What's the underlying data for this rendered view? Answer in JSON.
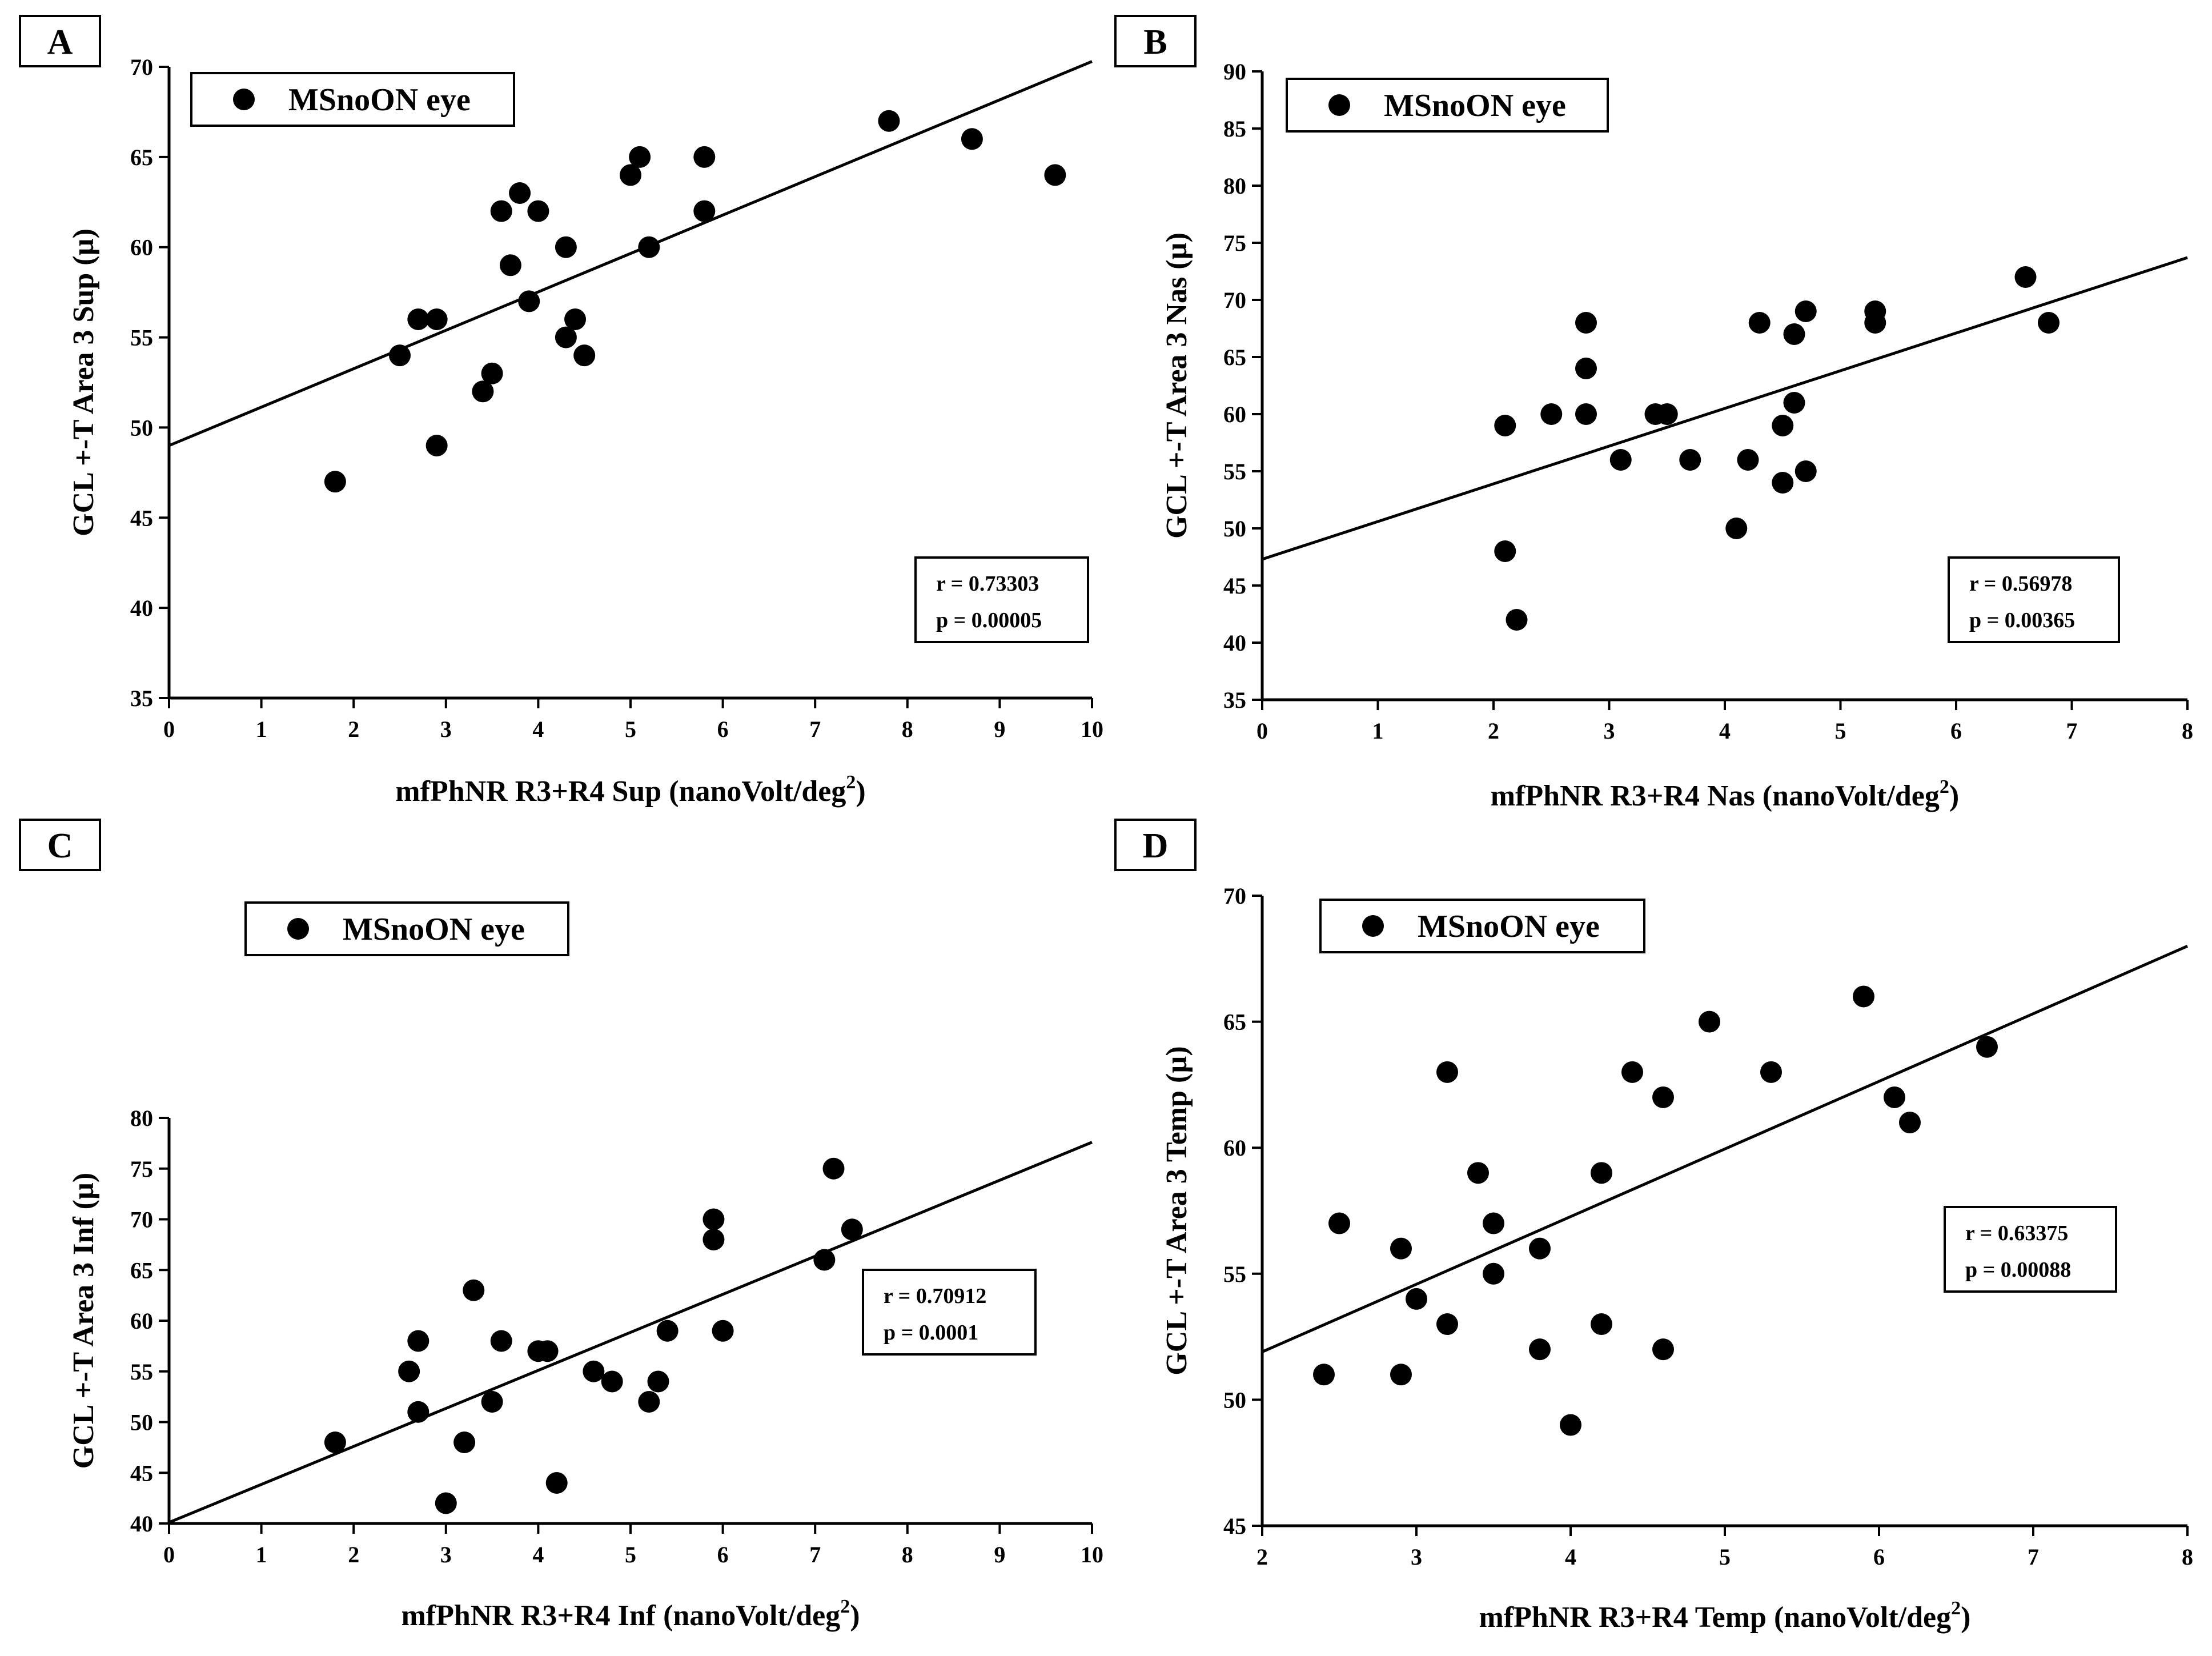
{
  "chart_data": [
    {
      "panel": "A",
      "type": "scatter",
      "xlabel": "mfPhNR R3+R4 Sup (nanoVolt/deg",
      "xlabel_sup": "2",
      "xlabel_end": ")",
      "ylabel": "GCL +-T  Area 3 Sup  (µ)",
      "xlim": [
        0,
        10
      ],
      "ylim": [
        35,
        70
      ],
      "xticks": [
        0,
        1,
        2,
        3,
        4,
        5,
        6,
        7,
        8,
        9,
        10
      ],
      "yticks": [
        35,
        40,
        45,
        50,
        55,
        60,
        65,
        70
      ],
      "grid": false,
      "legend": {
        "label": "MSnoON eye",
        "placement": "top-left"
      },
      "stats": {
        "r": "r  = 0.73303",
        "p": "p = 0.00005"
      },
      "fit_line": {
        "x": [
          0,
          10
        ],
        "y": [
          49,
          70.3
        ]
      },
      "series": [
        {
          "name": "MSnoON eye",
          "points": [
            [
              1.8,
              47
            ],
            [
              2.5,
              54
            ],
            [
              2.7,
              56
            ],
            [
              2.9,
              56
            ],
            [
              2.9,
              49
            ],
            [
              3.4,
              52
            ],
            [
              3.5,
              53
            ],
            [
              3.6,
              62
            ],
            [
              3.7,
              59
            ],
            [
              3.8,
              63
            ],
            [
              3.9,
              57
            ],
            [
              4.0,
              62
            ],
            [
              4.3,
              60
            ],
            [
              4.3,
              55
            ],
            [
              4.4,
              56
            ],
            [
              4.5,
              54
            ],
            [
              5.0,
              64
            ],
            [
              5.1,
              65
            ],
            [
              5.2,
              60
            ],
            [
              5.8,
              65
            ],
            [
              5.8,
              62
            ],
            [
              7.8,
              67
            ],
            [
              8.7,
              66
            ],
            [
              9.6,
              64
            ]
          ]
        }
      ]
    },
    {
      "panel": "B",
      "type": "scatter",
      "xlabel": "mfPhNR R3+R4 Nas (nanoVolt/deg",
      "xlabel_sup": "2",
      "xlabel_end": ")",
      "ylabel": "GCL +-T  Area 3 Nas  (µ)",
      "xlim": [
        0,
        8
      ],
      "ylim": [
        35,
        90
      ],
      "xticks": [
        0,
        1,
        2,
        3,
        4,
        5,
        6,
        7,
        8
      ],
      "yticks": [
        35,
        40,
        45,
        50,
        55,
        60,
        65,
        70,
        75,
        80,
        85,
        90
      ],
      "grid": false,
      "legend": {
        "label": "MSnoON eye",
        "placement": "top-left"
      },
      "stats": {
        "r": "r  = 0.56978",
        "p": "p = 0.00365"
      },
      "fit_line": {
        "x": [
          0,
          8
        ],
        "y": [
          47.3,
          73.7
        ]
      },
      "series": [
        {
          "name": "MSnoON eye",
          "points": [
            [
              2.1,
              59
            ],
            [
              2.1,
              48
            ],
            [
              2.2,
              42
            ],
            [
              2.5,
              60
            ],
            [
              2.8,
              68
            ],
            [
              2.8,
              64
            ],
            [
              2.8,
              60
            ],
            [
              3.1,
              56
            ],
            [
              3.4,
              60
            ],
            [
              3.5,
              60
            ],
            [
              3.7,
              56
            ],
            [
              4.1,
              50
            ],
            [
              4.2,
              56
            ],
            [
              4.3,
              68
            ],
            [
              4.5,
              59
            ],
            [
              4.5,
              54
            ],
            [
              4.6,
              67
            ],
            [
              4.6,
              61
            ],
            [
              4.7,
              69
            ],
            [
              4.7,
              55
            ],
            [
              5.3,
              69
            ],
            [
              5.3,
              68
            ],
            [
              6.6,
              72
            ],
            [
              6.8,
              68
            ]
          ]
        }
      ]
    },
    {
      "panel": "C",
      "type": "scatter",
      "xlabel": "mfPhNR R3+R4 Inf (nanoVolt/deg",
      "xlabel_sup": "2",
      "xlabel_end": ")",
      "ylabel": "GCL +-T  Area 3 Inf  (µ)",
      "xlim": [
        0,
        10
      ],
      "ylim": [
        40,
        80
      ],
      "xticks": [
        0,
        1,
        2,
        3,
        4,
        5,
        6,
        7,
        8,
        9,
        10
      ],
      "yticks": [
        40,
        45,
        50,
        55,
        60,
        65,
        70,
        75,
        80
      ],
      "grid": false,
      "legend": {
        "label": "MSnoON eye",
        "placement": "top-left"
      },
      "stats": {
        "r": "r  = 0.70912",
        "p": "p = 0.0001"
      },
      "fit_line": {
        "x": [
          0,
          10
        ],
        "y": [
          40.1,
          77.6
        ]
      },
      "series": [
        {
          "name": "MSnoON eye",
          "points": [
            [
              1.8,
              48
            ],
            [
              2.6,
              55
            ],
            [
              2.7,
              58
            ],
            [
              2.7,
              51
            ],
            [
              3.0,
              42
            ],
            [
              3.2,
              48
            ],
            [
              3.3,
              63
            ],
            [
              3.5,
              52
            ],
            [
              3.6,
              58
            ],
            [
              4.0,
              57
            ],
            [
              4.1,
              57
            ],
            [
              4.2,
              44
            ],
            [
              4.6,
              55
            ],
            [
              4.8,
              54
            ],
            [
              5.2,
              52
            ],
            [
              5.3,
              54
            ],
            [
              5.4,
              59
            ],
            [
              5.9,
              70
            ],
            [
              5.9,
              68
            ],
            [
              6.0,
              59
            ],
            [
              7.1,
              66
            ],
            [
              7.2,
              75
            ],
            [
              7.4,
              69
            ]
          ]
        }
      ]
    },
    {
      "panel": "D",
      "type": "scatter",
      "xlabel": "mfPhNR R3+R4 Temp (nanoVolt/deg",
      "xlabel_sup": "2",
      "xlabel_end": ")",
      "ylabel": "GCL +-T  Area 3 Temp  (µ)",
      "xlim": [
        2,
        8
      ],
      "ylim": [
        45,
        70
      ],
      "xticks": [
        2,
        3,
        4,
        5,
        6,
        7,
        8
      ],
      "yticks": [
        45,
        50,
        55,
        60,
        65,
        70
      ],
      "grid": false,
      "legend": {
        "label": "MSnoON eye",
        "placement": "top-left"
      },
      "stats": {
        "r": "r  = 0.63375",
        "p": "p = 0.00088"
      },
      "fit_line": {
        "x": [
          2,
          8
        ],
        "y": [
          51.9,
          68.0
        ]
      },
      "series": [
        {
          "name": "MSnoON eye",
          "points": [
            [
              2.4,
              51
            ],
            [
              2.5,
              57
            ],
            [
              2.9,
              56
            ],
            [
              2.9,
              51
            ],
            [
              3.0,
              54
            ],
            [
              3.2,
              63
            ],
            [
              3.2,
              53
            ],
            [
              3.4,
              59
            ],
            [
              3.5,
              57
            ],
            [
              3.5,
              55
            ],
            [
              3.8,
              56
            ],
            [
              3.8,
              52
            ],
            [
              4.0,
              49
            ],
            [
              4.2,
              59
            ],
            [
              4.2,
              53
            ],
            [
              4.4,
              63
            ],
            [
              4.6,
              62
            ],
            [
              4.6,
              52
            ],
            [
              4.9,
              65
            ],
            [
              5.3,
              63
            ],
            [
              5.9,
              66
            ],
            [
              6.1,
              62
            ],
            [
              6.2,
              61
            ],
            [
              6.7,
              64
            ]
          ]
        }
      ]
    }
  ]
}
